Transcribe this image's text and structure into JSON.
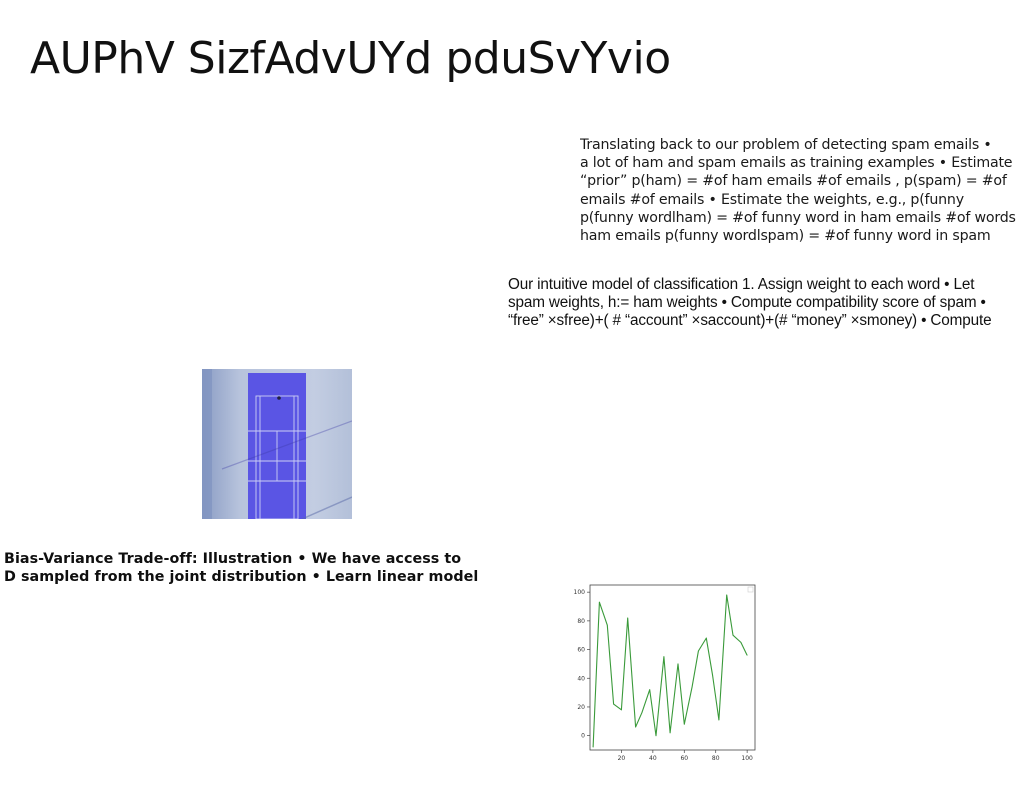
{
  "slide": {
    "title": "AUPhV SizfAdvUYd pduSvYvio"
  },
  "text_blocks": {
    "spam_estimation": [
      "Translating back to our problem of detecting spam emails •",
      "a lot of ham and spam emails as training examples • Estimate",
      "“prior” p(ham) = #of ham emails #of emails , p(spam) = #of",
      "emails #of emails • Estimate the weights, e.g., p(funny",
      "p(funny wordlham) = #of funny word in ham emails #of words",
      "ham emails p(funny wordlspam) = #of funny word in spam"
    ],
    "classification_model": [
      "Our intuitive model of classification 1. Assign weight to each word • Let",
      "spam weights, h:= ham weights • Compute compatibility score of spam •",
      "“free” ×sfree)+( # “account” ×saccount)+(# “money” ×smoney) • Compute"
    ],
    "bias_variance": [
      "Bias-Variance Trade-off: Illustration • We have access to",
      "D sampled from the joint distribution • Learn linear model"
    ]
  },
  "figures": {
    "photo": {
      "icon": "tennis-court-aerial-photo",
      "colors": {
        "court": "#5a55e4",
        "surround": "#a9b7d3",
        "lines": "#d9dcf6"
      }
    }
  },
  "chart_data": {
    "type": "line",
    "x": [
      2,
      6,
      11,
      15,
      20,
      24,
      29,
      33,
      38,
      42,
      47,
      51,
      56,
      60,
      65,
      69,
      74,
      78,
      82,
      87,
      91,
      96,
      100
    ],
    "values": [
      -8,
      93,
      77,
      22,
      18,
      82,
      6,
      16,
      32,
      0,
      55,
      2,
      50,
      8,
      34,
      59,
      68,
      42,
      11,
      98,
      70,
      65,
      56
    ],
    "xlim": [
      0,
      105
    ],
    "ylim": [
      -10,
      105
    ],
    "xticks": [
      20,
      40,
      60,
      80,
      100
    ],
    "yticks": [
      0,
      20,
      40,
      60,
      80,
      100
    ],
    "line_color": "#3a9a3a",
    "grid": false
  }
}
